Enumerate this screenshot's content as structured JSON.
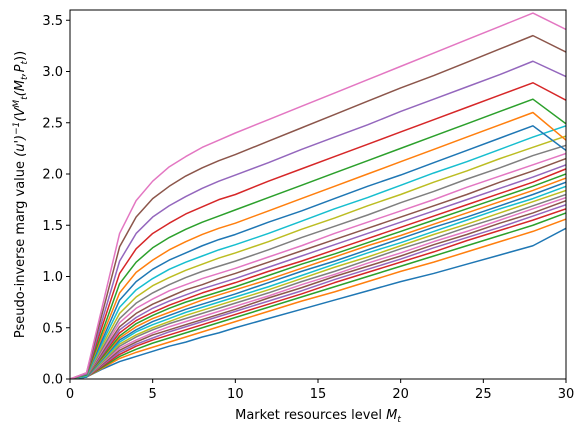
{
  "chart_data": {
    "type": "line",
    "title": "",
    "xlabel": "Market resources level $M_t$",
    "ylabel": "Pseudo-inverse marg value $(u')^{-1}(V^{M}_t(M_t,P_t))$",
    "xlim": [
      0,
      30
    ],
    "ylim": [
      0,
      3.6
    ],
    "xticks": [
      0,
      5,
      10,
      15,
      20,
      25,
      30
    ],
    "yticks": [
      0.0,
      0.5,
      1.0,
      1.5,
      2.0,
      2.5,
      3.0,
      3.5
    ],
    "xtick_labels": [
      "0",
      "5",
      "10",
      "15",
      "20",
      "25",
      "30"
    ],
    "ytick_labels": [
      "0.0",
      "0.5",
      "1.0",
      "1.5",
      "2.0",
      "2.5",
      "3.0",
      "3.5"
    ],
    "grid": false,
    "legend": "none",
    "x": [
      0,
      1,
      2,
      3,
      4,
      5,
      6,
      7,
      8,
      9,
      10,
      12,
      14,
      16,
      18,
      20,
      22,
      24,
      26,
      28,
      30
    ],
    "series": [
      {
        "color": "#1f77b4",
        "values": [
          0,
          0.02,
          0.1,
          0.17,
          0.22,
          0.27,
          0.32,
          0.36,
          0.41,
          0.45,
          0.5,
          0.59,
          0.68,
          0.77,
          0.86,
          0.95,
          1.03,
          1.12,
          1.21,
          1.3,
          1.47
        ]
      },
      {
        "color": "#ff7f0e",
        "values": [
          0,
          0.02,
          0.11,
          0.2,
          0.26,
          0.31,
          0.36,
          0.41,
          0.46,
          0.51,
          0.56,
          0.66,
          0.76,
          0.85,
          0.95,
          1.05,
          1.14,
          1.24,
          1.34,
          1.44,
          1.56
        ]
      },
      {
        "color": "#2ca02c",
        "values": [
          0,
          0.02,
          0.12,
          0.22,
          0.29,
          0.35,
          0.4,
          0.45,
          0.5,
          0.55,
          0.6,
          0.7,
          0.8,
          0.9,
          1.0,
          1.1,
          1.2,
          1.3,
          1.4,
          1.5,
          1.62
        ]
      },
      {
        "color": "#d62728",
        "values": [
          0,
          0.02,
          0.13,
          0.24,
          0.32,
          0.38,
          0.43,
          0.48,
          0.53,
          0.58,
          0.63,
          0.73,
          0.83,
          0.94,
          1.04,
          1.14,
          1.24,
          1.35,
          1.45,
          1.55,
          1.66
        ]
      },
      {
        "color": "#9467bd",
        "values": [
          0,
          0.02,
          0.14,
          0.26,
          0.34,
          0.4,
          0.46,
          0.51,
          0.56,
          0.61,
          0.66,
          0.76,
          0.86,
          0.97,
          1.07,
          1.17,
          1.28,
          1.38,
          1.48,
          1.59,
          1.7
        ]
      },
      {
        "color": "#8c564b",
        "values": [
          0,
          0.02,
          0.15,
          0.28,
          0.36,
          0.43,
          0.48,
          0.53,
          0.58,
          0.63,
          0.68,
          0.79,
          0.89,
          1.0,
          1.1,
          1.2,
          1.31,
          1.41,
          1.52,
          1.62,
          1.74
        ]
      },
      {
        "color": "#e377c2",
        "values": [
          0,
          0.02,
          0.16,
          0.3,
          0.38,
          0.45,
          0.51,
          0.56,
          0.61,
          0.66,
          0.71,
          0.81,
          0.92,
          1.02,
          1.13,
          1.23,
          1.34,
          1.44,
          1.55,
          1.66,
          1.77
        ]
      },
      {
        "color": "#7f7f7f",
        "values": [
          0,
          0.02,
          0.17,
          0.32,
          0.41,
          0.48,
          0.54,
          0.59,
          0.64,
          0.69,
          0.74,
          0.84,
          0.95,
          1.05,
          1.16,
          1.27,
          1.37,
          1.48,
          1.58,
          1.69,
          1.8
        ]
      },
      {
        "color": "#bcbd22",
        "values": [
          0,
          0.02,
          0.18,
          0.34,
          0.43,
          0.5,
          0.56,
          0.62,
          0.67,
          0.72,
          0.77,
          0.87,
          0.98,
          1.09,
          1.19,
          1.3,
          1.41,
          1.51,
          1.62,
          1.73,
          1.84
        ]
      },
      {
        "color": "#17becf",
        "values": [
          0,
          0.02,
          0.19,
          0.36,
          0.46,
          0.53,
          0.59,
          0.65,
          0.7,
          0.75,
          0.8,
          0.9,
          1.01,
          1.12,
          1.23,
          1.33,
          1.44,
          1.55,
          1.66,
          1.76,
          1.88
        ]
      },
      {
        "color": "#1f77b4",
        "values": [
          0,
          0.02,
          0.2,
          0.38,
          0.48,
          0.56,
          0.62,
          0.68,
          0.73,
          0.78,
          0.83,
          0.94,
          1.05,
          1.15,
          1.26,
          1.37,
          1.48,
          1.58,
          1.69,
          1.8,
          1.92
        ]
      },
      {
        "color": "#ff7f0e",
        "values": [
          0,
          0.03,
          0.21,
          0.4,
          0.51,
          0.59,
          0.65,
          0.71,
          0.77,
          0.82,
          0.87,
          0.97,
          1.08,
          1.19,
          1.3,
          1.4,
          1.51,
          1.62,
          1.73,
          1.84,
          1.96
        ]
      },
      {
        "color": "#2ca02c",
        "values": [
          0,
          0.03,
          0.22,
          0.42,
          0.54,
          0.62,
          0.69,
          0.75,
          0.8,
          0.85,
          0.9,
          1.01,
          1.12,
          1.22,
          1.33,
          1.44,
          1.55,
          1.66,
          1.77,
          1.88,
          2.0
        ]
      },
      {
        "color": "#d62728",
        "values": [
          0,
          0.03,
          0.24,
          0.45,
          0.57,
          0.65,
          0.72,
          0.78,
          0.84,
          0.89,
          0.94,
          1.05,
          1.15,
          1.26,
          1.37,
          1.48,
          1.59,
          1.7,
          1.81,
          1.92,
          2.05
        ]
      },
      {
        "color": "#9467bd",
        "values": [
          0,
          0.03,
          0.25,
          0.48,
          0.6,
          0.69,
          0.76,
          0.82,
          0.88,
          0.93,
          0.98,
          1.09,
          1.2,
          1.31,
          1.42,
          1.53,
          1.64,
          1.75,
          1.86,
          1.97,
          2.09
        ]
      },
      {
        "color": "#8c564b",
        "values": [
          0,
          0.03,
          0.27,
          0.51,
          0.64,
          0.73,
          0.8,
          0.87,
          0.92,
          0.98,
          1.03,
          1.14,
          1.25,
          1.36,
          1.47,
          1.58,
          1.69,
          1.8,
          1.92,
          2.03,
          2.15
        ]
      },
      {
        "color": "#e377c2",
        "values": [
          0,
          0.03,
          0.29,
          0.55,
          0.69,
          0.78,
          0.86,
          0.92,
          0.98,
          1.03,
          1.08,
          1.19,
          1.3,
          1.42,
          1.53,
          1.64,
          1.75,
          1.87,
          1.98,
          2.09,
          2.2
        ]
      },
      {
        "color": "#7f7f7f",
        "values": [
          0,
          0.03,
          0.31,
          0.59,
          0.74,
          0.84,
          0.92,
          0.99,
          1.05,
          1.1,
          1.15,
          1.26,
          1.38,
          1.49,
          1.6,
          1.72,
          1.83,
          1.95,
          2.06,
          2.18,
          2.28
        ]
      },
      {
        "color": "#bcbd22",
        "values": [
          0,
          0.03,
          0.34,
          0.64,
          0.8,
          0.91,
          0.99,
          1.06,
          1.12,
          1.18,
          1.23,
          1.34,
          1.46,
          1.57,
          1.69,
          1.8,
          1.92,
          2.03,
          2.15,
          2.26,
          2.37
        ]
      },
      {
        "color": "#17becf",
        "values": [
          0,
          0.03,
          0.37,
          0.7,
          0.87,
          0.98,
          1.07,
          1.14,
          1.2,
          1.26,
          1.31,
          1.42,
          1.54,
          1.66,
          1.77,
          1.89,
          2.01,
          2.12,
          2.24,
          2.36,
          2.47
        ]
      },
      {
        "color": "#1f77b4",
        "values": [
          0,
          0.04,
          0.4,
          0.77,
          0.95,
          1.07,
          1.16,
          1.23,
          1.3,
          1.36,
          1.41,
          1.53,
          1.64,
          1.76,
          1.88,
          1.99,
          2.11,
          2.23,
          2.35,
          2.47,
          2.23
        ]
      },
      {
        "color": "#ff7f0e",
        "values": [
          0,
          0.04,
          0.44,
          0.84,
          1.04,
          1.16,
          1.26,
          1.34,
          1.41,
          1.47,
          1.52,
          1.64,
          1.76,
          1.88,
          2.0,
          2.12,
          2.24,
          2.36,
          2.48,
          2.6,
          2.33
        ]
      },
      {
        "color": "#2ca02c",
        "values": [
          0,
          0.04,
          0.48,
          0.93,
          1.14,
          1.28,
          1.38,
          1.46,
          1.53,
          1.59,
          1.65,
          1.77,
          1.89,
          2.01,
          2.13,
          2.25,
          2.37,
          2.49,
          2.61,
          2.73,
          2.49
        ]
      },
      {
        "color": "#d62728",
        "values": [
          0,
          0.05,
          0.54,
          1.03,
          1.27,
          1.42,
          1.52,
          1.61,
          1.68,
          1.75,
          1.8,
          1.93,
          2.05,
          2.17,
          2.29,
          2.41,
          2.53,
          2.65,
          2.77,
          2.89,
          2.72
        ]
      },
      {
        "color": "#9467bd",
        "values": [
          0,
          0.05,
          0.6,
          1.15,
          1.42,
          1.58,
          1.69,
          1.78,
          1.86,
          1.93,
          1.99,
          2.11,
          2.24,
          2.36,
          2.48,
          2.61,
          2.73,
          2.85,
          2.97,
          3.1,
          2.95
        ]
      },
      {
        "color": "#8c564b",
        "values": [
          0,
          0.06,
          0.67,
          1.29,
          1.58,
          1.76,
          1.88,
          1.98,
          2.06,
          2.13,
          2.19,
          2.32,
          2.45,
          2.58,
          2.71,
          2.84,
          2.96,
          3.09,
          3.22,
          3.35,
          3.19
        ]
      },
      {
        "color": "#e377c2",
        "values": [
          0,
          0.06,
          0.74,
          1.42,
          1.74,
          1.93,
          2.07,
          2.17,
          2.26,
          2.33,
          2.4,
          2.53,
          2.66,
          2.79,
          2.92,
          3.05,
          3.18,
          3.31,
          3.44,
          3.57,
          3.41
        ]
      }
    ]
  }
}
